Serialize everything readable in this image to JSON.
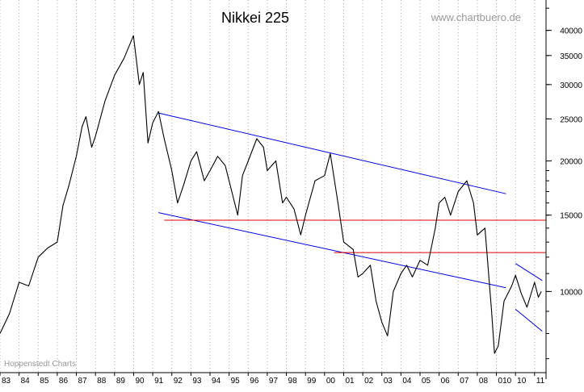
{
  "chart_data": {
    "type": "line",
    "title": "Nikkei 225",
    "source": "www.chartbuero.de",
    "credit": "Hoppenstedt Charts",
    "y_scale": "log",
    "ylim": [
      6500,
      47000
    ],
    "y_ticks": [
      10000,
      15000,
      20000,
      25000,
      30000,
      35000,
      40000
    ],
    "y_tick_labels": [
      "10000",
      "15000",
      "20000",
      "25000",
      "30000",
      "35000",
      "40000"
    ],
    "xlim": [
      1983.0,
      2011.6
    ],
    "x_ticks": [
      1983,
      1984,
      1985,
      1986,
      1987,
      1988,
      1989,
      1990,
      1991,
      1992,
      1993,
      1994,
      1995,
      1996,
      1997,
      1998,
      1999,
      2000,
      2001,
      2002,
      2003,
      2004,
      2005,
      2006,
      2007,
      2008,
      2009,
      2010,
      2011
    ],
    "x_tick_labels": [
      "83",
      "84",
      "85",
      "86",
      "87",
      "88",
      "89",
      "90",
      "91",
      "92",
      "93",
      "94",
      "95",
      "96",
      "97",
      "98",
      "99",
      "00",
      "01",
      "02",
      "03",
      "04",
      "05",
      "06",
      "07",
      "08",
      "010",
      "10",
      "11"
    ],
    "grid": true,
    "legend": "none",
    "series": [
      {
        "color": "#000000",
        "x": [
          1983.0,
          1983.5,
          1984.0,
          1984.5,
          1985.0,
          1985.5,
          1986.0,
          1986.3,
          1986.6,
          1987.0,
          1987.3,
          1987.5,
          1987.8,
          1988.0,
          1988.5,
          1989.0,
          1989.5,
          1989.99,
          1990.3,
          1990.5,
          1990.75,
          1991.0,
          1991.3,
          1991.6,
          1992.0,
          1992.3,
          1992.6,
          1993.0,
          1993.3,
          1993.7,
          1994.0,
          1994.4,
          1994.8,
          1995.0,
          1995.45,
          1995.7,
          1996.0,
          1996.45,
          1996.8,
          1997.0,
          1997.45,
          1997.8,
          1998.0,
          1998.4,
          1998.75,
          1999.0,
          1999.5,
          2000.0,
          2000.3,
          2000.7,
          2001.0,
          2001.5,
          2001.75,
          2002.0,
          2002.4,
          2002.7,
          2003.0,
          2003.3,
          2003.6,
          2004.0,
          2004.3,
          2004.6,
          2005.0,
          2005.4,
          2005.8,
          2006.0,
          2006.3,
          2006.6,
          2007.0,
          2007.45,
          2007.8,
          2008.0,
          2008.4,
          2008.75,
          2008.9,
          2009.1,
          2009.4,
          2009.8,
          2010.0,
          2010.3,
          2010.6,
          2011.0,
          2011.2,
          2011.35
        ],
        "y": [
          8000,
          8900,
          10500,
          10300,
          12000,
          12600,
          13000,
          15800,
          17500,
          20500,
          24000,
          25300,
          21500,
          22800,
          27500,
          31500,
          34500,
          38900,
          30000,
          32000,
          22000,
          24500,
          26000,
          22500,
          19000,
          16000,
          17500,
          20000,
          21000,
          18000,
          19000,
          20500,
          19500,
          18000,
          15000,
          18500,
          20000,
          22500,
          21500,
          19000,
          20000,
          16000,
          16500,
          15500,
          13500,
          15000,
          18000,
          18500,
          20800,
          16000,
          13000,
          12500,
          10800,
          11000,
          11500,
          9500,
          8500,
          7900,
          10000,
          11000,
          11500,
          10800,
          11800,
          11500,
          14000,
          16000,
          16500,
          15000,
          17000,
          18000,
          16000,
          13500,
          14000,
          9000,
          7200,
          7500,
          9500,
          10300,
          10900,
          9900,
          9200,
          10500,
          9700,
          10000
        ]
      },
      {
        "name": "",
        "color": "#0000dd",
        "x": [
          1991.3,
          2009.5
        ],
        "y": [
          25800,
          16800
        ]
      },
      {
        "name": "",
        "color": "#0000dd",
        "x": [
          1991.3,
          2009.5
        ],
        "y": [
          15200,
          10200
        ]
      },
      {
        "name": "",
        "color": "#dd0000",
        "x": [
          1991.6,
          2011.6
        ],
        "y": [
          14600,
          14600
        ]
      },
      {
        "name": "",
        "color": "#dd0000",
        "x": [
          2000.5,
          2011.6
        ],
        "y": [
          12300,
          12300
        ]
      },
      {
        "name": "",
        "color": "#0000dd",
        "x": [
          2010.0,
          2011.4
        ],
        "y": [
          11600,
          10600
        ]
      },
      {
        "name": "",
        "color": "#0000dd",
        "x": [
          2010.0,
          2011.4
        ],
        "y": [
          9100,
          8100
        ]
      }
    ]
  }
}
